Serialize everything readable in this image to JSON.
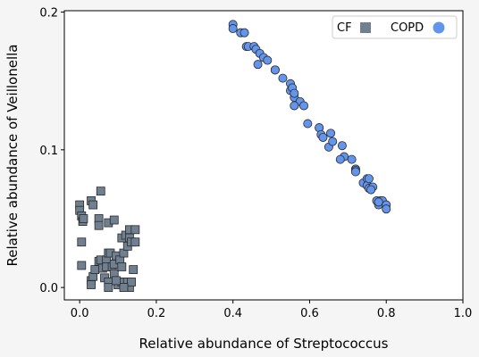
{
  "chart_data": {
    "type": "scatter",
    "title": "",
    "xlabel": "Relative abundance of Streptococcus",
    "ylabel": "Relative abundance of Veillonella",
    "xlim": [
      -0.04,
      1.0
    ],
    "ylim": [
      -0.009,
      0.201
    ],
    "xticks": [
      {
        "value": 0.0,
        "label": "0.0"
      },
      {
        "value": 0.2,
        "label": "0.2"
      },
      {
        "value": 0.4,
        "label": "0.4"
      },
      {
        "value": 0.6,
        "label": "0.6"
      },
      {
        "value": 0.8,
        "label": "0.8"
      },
      {
        "value": 1.0,
        "label": "1.0"
      }
    ],
    "yticks": [
      {
        "value": 0.0,
        "label": "0.0"
      },
      {
        "value": 0.1,
        "label": "0.1"
      },
      {
        "value": 0.2,
        "label": "0.2"
      }
    ],
    "grid": false,
    "legend_position": "top-right",
    "series": [
      {
        "name": "CF",
        "marker": "square",
        "color": "#708090",
        "edge_color": "#2a2a2a",
        "points": [
          [
            0.0,
            0.06
          ],
          [
            0.0,
            0.056
          ],
          [
            0.005,
            0.052
          ],
          [
            0.008,
            0.048
          ],
          [
            0.01,
            0.05
          ],
          [
            0.005,
            0.033
          ],
          [
            0.005,
            0.016
          ],
          [
            0.03,
            0.063
          ],
          [
            0.035,
            0.06
          ],
          [
            0.055,
            0.07
          ],
          [
            0.05,
            0.05
          ],
          [
            0.05,
            0.045
          ],
          [
            0.075,
            0.047
          ],
          [
            0.09,
            0.049
          ],
          [
            0.03,
            0.005
          ],
          [
            0.03,
            0.002
          ],
          [
            0.035,
            0.008
          ],
          [
            0.04,
            0.013
          ],
          [
            0.05,
            0.019
          ],
          [
            0.055,
            0.02
          ],
          [
            0.06,
            0.014
          ],
          [
            0.07,
            0.02
          ],
          [
            0.07,
            0.015
          ],
          [
            0.075,
            0.025
          ],
          [
            0.08,
            0.025
          ],
          [
            0.065,
            0.007
          ],
          [
            0.075,
            0.004
          ],
          [
            0.075,
            0.0
          ],
          [
            0.085,
            0.015
          ],
          [
            0.09,
            0.017
          ],
          [
            0.09,
            0.01
          ],
          [
            0.095,
            0.023
          ],
          [
            0.1,
            0.004
          ],
          [
            0.1,
            0.002
          ],
          [
            0.11,
            0.004
          ],
          [
            0.105,
            0.02
          ],
          [
            0.11,
            0.015
          ],
          [
            0.115,
            0.025
          ],
          [
            0.11,
            0.036
          ],
          [
            0.12,
            0.038
          ],
          [
            0.13,
            0.042
          ],
          [
            0.13,
            0.036
          ],
          [
            0.125,
            0.03
          ],
          [
            0.135,
            0.033
          ],
          [
            0.145,
            0.033
          ],
          [
            0.145,
            0.042
          ],
          [
            0.125,
            0.004
          ],
          [
            0.13,
            0.0
          ],
          [
            0.135,
            0.004
          ],
          [
            0.14,
            0.013
          ],
          [
            0.115,
            0.0
          ],
          [
            0.095,
            0.005
          ]
        ]
      },
      {
        "name": "COPD",
        "marker": "circle",
        "color": "#6495ed",
        "edge_color": "#2a2a2a",
        "points": [
          [
            0.4,
            0.191
          ],
          [
            0.4,
            0.188
          ],
          [
            0.42,
            0.185
          ],
          [
            0.43,
            0.185
          ],
          [
            0.435,
            0.175
          ],
          [
            0.44,
            0.175
          ],
          [
            0.455,
            0.175
          ],
          [
            0.46,
            0.173
          ],
          [
            0.47,
            0.17
          ],
          [
            0.465,
            0.162
          ],
          [
            0.48,
            0.167
          ],
          [
            0.49,
            0.165
          ],
          [
            0.51,
            0.158
          ],
          [
            0.51,
            0.158
          ],
          [
            0.53,
            0.152
          ],
          [
            0.55,
            0.148
          ],
          [
            0.55,
            0.143
          ],
          [
            0.555,
            0.145
          ],
          [
            0.56,
            0.138
          ],
          [
            0.56,
            0.141
          ],
          [
            0.575,
            0.135
          ],
          [
            0.585,
            0.132
          ],
          [
            0.56,
            0.132
          ],
          [
            0.595,
            0.119
          ],
          [
            0.625,
            0.116
          ],
          [
            0.625,
            0.116
          ],
          [
            0.63,
            0.111
          ],
          [
            0.635,
            0.109
          ],
          [
            0.655,
            0.112
          ],
          [
            0.65,
            0.102
          ],
          [
            0.66,
            0.106
          ],
          [
            0.685,
            0.103
          ],
          [
            0.69,
            0.095
          ],
          [
            0.68,
            0.093
          ],
          [
            0.71,
            0.093
          ],
          [
            0.72,
            0.086
          ],
          [
            0.72,
            0.085
          ],
          [
            0.72,
            0.084
          ],
          [
            0.74,
            0.076
          ],
          [
            0.75,
            0.079
          ],
          [
            0.75,
            0.074
          ],
          [
            0.755,
            0.072
          ],
          [
            0.765,
            0.073
          ],
          [
            0.76,
            0.071
          ],
          [
            0.775,
            0.063
          ],
          [
            0.78,
            0.06
          ],
          [
            0.785,
            0.063
          ],
          [
            0.79,
            0.063
          ],
          [
            0.8,
            0.06
          ],
          [
            0.8,
            0.057
          ],
          [
            0.78,
            0.062
          ],
          [
            0.755,
            0.079
          ]
        ]
      }
    ]
  }
}
